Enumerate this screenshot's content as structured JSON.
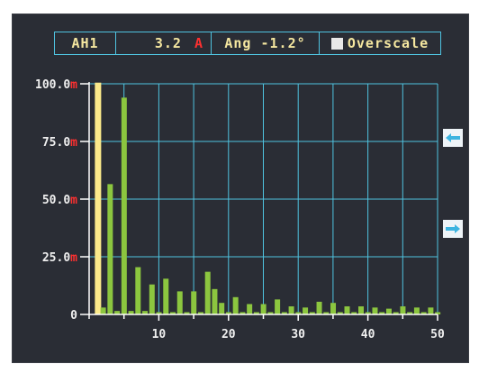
{
  "header": {
    "channel": "AH1",
    "value": "3.2",
    "unit": "A",
    "angle": "Ang -1.2°",
    "overscale": "Overscale"
  },
  "controls": {
    "scroll_left_icon": "arrow-left-icon",
    "scroll_right_icon": "arrow-right-icon"
  },
  "colors": {
    "background": "#2a2d35",
    "bar": "#8cc63f",
    "fundamental_bar": "#fbe98a",
    "grid": "#4fc3e0",
    "unit_red": "#ff3030"
  },
  "chart_data": {
    "type": "bar",
    "x": [
      1,
      2,
      3,
      4,
      5,
      6,
      7,
      8,
      9,
      10,
      11,
      12,
      13,
      14,
      15,
      16,
      17,
      18,
      19,
      20,
      21,
      22,
      23,
      24,
      25,
      26,
      27,
      28,
      29,
      30,
      31,
      32,
      33,
      34,
      35,
      36,
      37,
      38,
      39,
      40,
      41,
      42,
      43,
      44,
      45,
      46,
      47,
      48,
      49,
      50
    ],
    "values": [
      100.5,
      3,
      56.5,
      1.5,
      94,
      1.5,
      20.5,
      1.5,
      13,
      1,
      15.5,
      1,
      10,
      1,
      10,
      1,
      18.5,
      11,
      5,
      1,
      7.5,
      1,
      4.5,
      1,
      4.5,
      1,
      6.5,
      1,
      3.5,
      1,
      3,
      1,
      5.5,
      1,
      5,
      1,
      3.5,
      1,
      3.5,
      1,
      3,
      1,
      2.5,
      1,
      3.5,
      1,
      3,
      1,
      3,
      1
    ],
    "fundamental_harmonic": 1,
    "ylim": [
      0,
      100
    ],
    "xlim": [
      0,
      50
    ],
    "yticks": [
      {
        "value": 0,
        "num": "0",
        "unit": ""
      },
      {
        "value": 25,
        "num": "25.0",
        "unit": "m"
      },
      {
        "value": 50,
        "num": "50.0",
        "unit": "m"
      },
      {
        "value": 75,
        "num": "75.0",
        "unit": "m"
      },
      {
        "value": 100,
        "num": "100.0",
        "unit": "m"
      }
    ],
    "xticks": [
      10,
      20,
      30,
      40,
      50
    ],
    "grid": true
  }
}
